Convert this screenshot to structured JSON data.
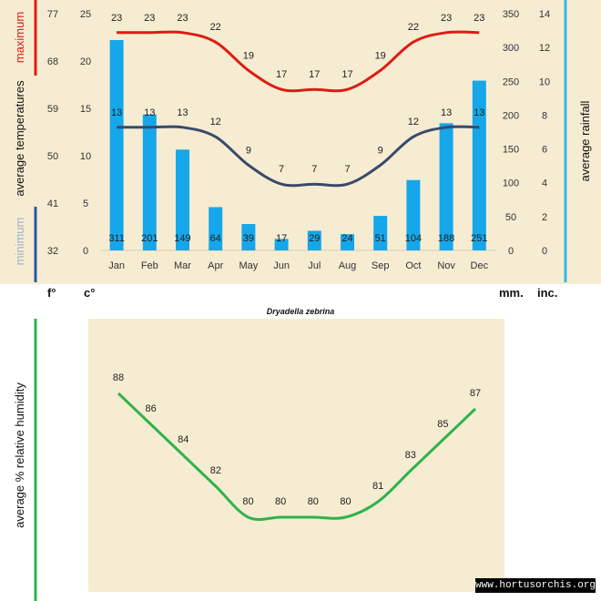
{
  "colors": {
    "max": "#dd1d12",
    "min": "#2c56a3",
    "rain": "#15a7e9",
    "humidity": "#2fb34b",
    "minTitle": "#9ab2cc",
    "panel": "#f6ecd2",
    "axisLine": "#33b6e8"
  },
  "labels": {
    "maximum": "maximum",
    "minimum": "minimum",
    "avgTemps": "average temperatures",
    "avgRain": "average rainfall",
    "avgHumidity": "average % relative humidity",
    "unitF": "f°",
    "unitC": "c°",
    "unitMM": "mm.",
    "unitInc": "inc.",
    "species": "Dryadella zebrina",
    "website": "www.hortusorchis.org"
  },
  "chart_data": [
    {
      "type": "bar+line",
      "categories": [
        "Jan",
        "Feb",
        "Mar",
        "Apr",
        "May",
        "Jun",
        "Jul",
        "Aug",
        "Sep",
        "Oct",
        "Nov",
        "Dec"
      ],
      "rainfall_mm": [
        311,
        201,
        149,
        64,
        39,
        17,
        29,
        24,
        51,
        104,
        188,
        251
      ],
      "max_c": [
        23,
        23,
        23,
        22,
        19,
        17,
        17,
        17,
        19,
        22,
        23,
        23
      ],
      "min_c": [
        13,
        13,
        13,
        12,
        9,
        7,
        7,
        7,
        9,
        12,
        13,
        13
      ],
      "axes": {
        "f": {
          "ticks": [
            32,
            41,
            50,
            59,
            68,
            77
          ]
        },
        "c": {
          "ticks": [
            0,
            5,
            10,
            15,
            20,
            25
          ],
          "ylim": [
            0,
            25
          ]
        },
        "mm": {
          "ticks": [
            0,
            50,
            100,
            150,
            200,
            250,
            300,
            350
          ],
          "ylim": [
            0,
            350
          ]
        },
        "inc": {
          "ticks": [
            0,
            2,
            4,
            6,
            8,
            10,
            12,
            14
          ]
        }
      },
      "xlabel": "",
      "title": "Dryadella zebrina"
    },
    {
      "type": "line",
      "categories": [
        "Jan",
        "Feb",
        "Mar",
        "Apr",
        "May",
        "Jun",
        "Jul",
        "Aug",
        "Sep",
        "Oct",
        "Nov",
        "Dec"
      ],
      "humidity_pct": [
        88,
        86,
        84,
        82,
        80,
        80,
        80,
        80,
        81,
        83,
        85,
        87
      ],
      "ylim": [
        79.2,
        89.6
      ],
      "ylabel": "average % relative humidity"
    }
  ]
}
